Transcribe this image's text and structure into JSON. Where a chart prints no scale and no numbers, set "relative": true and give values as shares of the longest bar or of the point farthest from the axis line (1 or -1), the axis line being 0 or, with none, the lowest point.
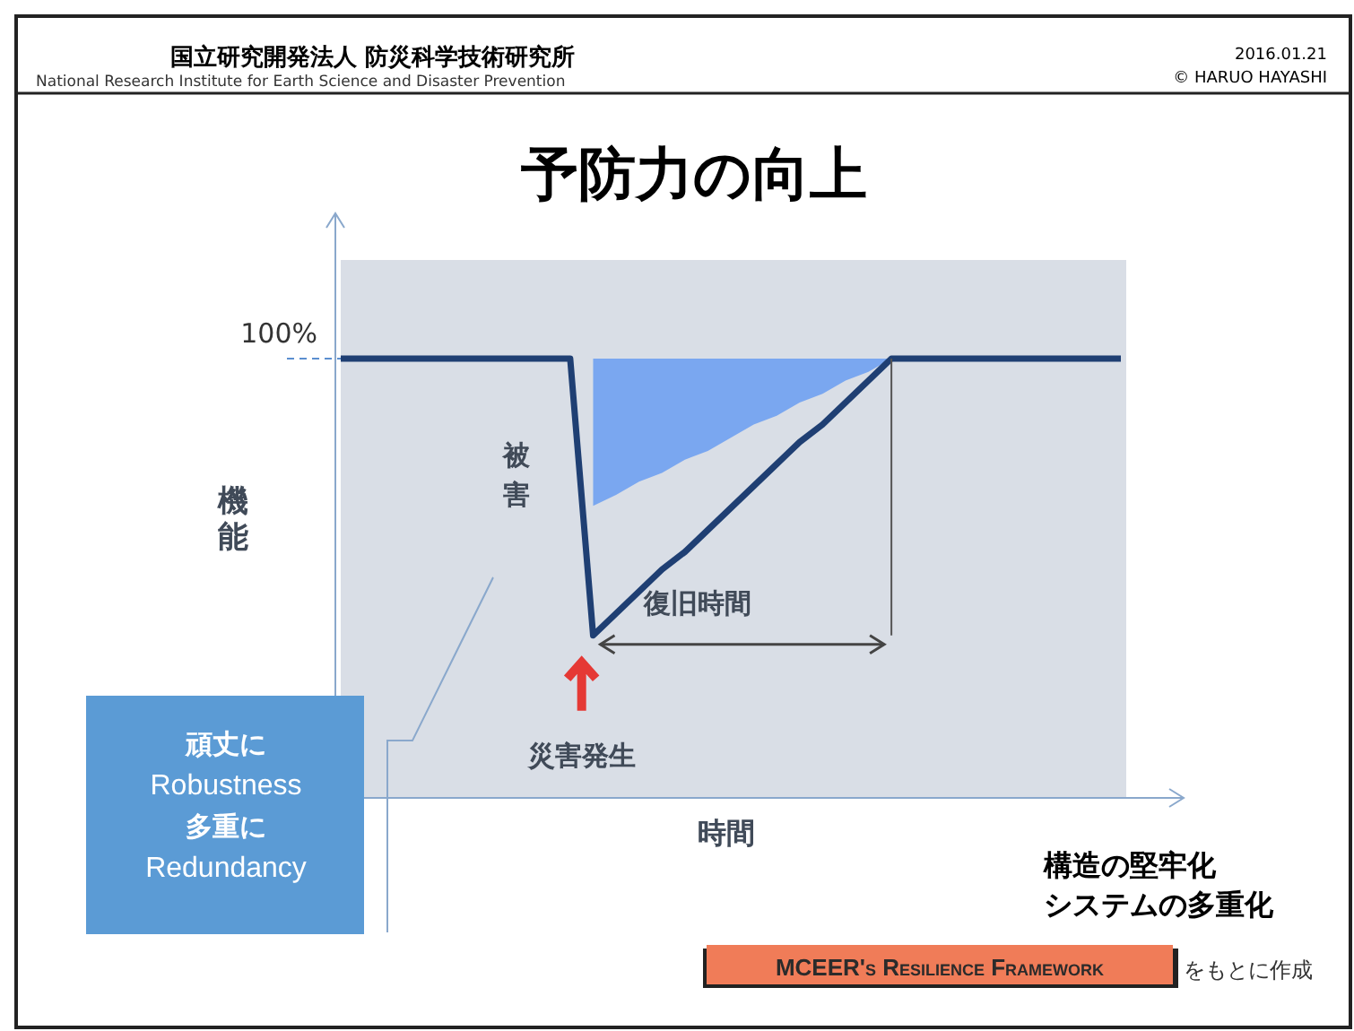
{
  "chart_data": {
    "type": "line",
    "title": "予防力の向上",
    "xlabel": "時間",
    "ylabel": "機能",
    "relative": true,
    "tick_labels": false,
    "grid": false,
    "marker": "none",
    "line_style": "solid",
    "categories": [
      null,
      null,
      null,
      null,
      null,
      null,
      null,
      null,
      null,
      null,
      null,
      null,
      null,
      null,
      null,
      null,
      null,
      null,
      null,
      null,
      null,
      null,
      null,
      null,
      null,
      null,
      null,
      null,
      null,
      null,
      null,
      null,
      null,
      null,
      null
    ],
    "series": [
      {
        "color": "#1f3f73",
        "values": [
          1,
          1,
          1,
          1,
          1,
          1,
          1,
          1,
          1,
          1,
          1,
          0.37,
          0.42,
          0.47,
          0.52,
          0.56,
          0.61,
          0.66,
          0.71,
          0.76,
          0.81,
          0.85,
          0.9,
          0.95,
          1,
          1,
          1,
          1,
          1,
          1,
          1,
          1,
          1,
          1,
          1
        ],
        "lower": [
          null,
          null,
          null,
          null,
          null,
          null,
          null,
          null,
          null,
          null,
          null,
          0.665,
          0.69,
          0.72,
          0.74,
          0.77,
          0.79,
          0.82,
          0.85,
          0.87,
          0.9,
          0.92,
          0.95,
          0.97,
          1,
          null,
          null,
          null,
          null,
          null,
          null,
          null,
          null,
          null,
          null
        ],
        "upper": [
          null,
          null,
          null,
          null,
          null,
          null,
          null,
          null,
          null,
          null,
          null,
          1,
          1,
          1,
          1,
          1,
          1,
          1,
          1,
          1,
          1,
          1,
          1,
          1,
          1,
          null,
          null,
          null,
          null,
          null,
          null,
          null,
          null,
          null,
          null
        ]
      }
    ],
    "ref_lines": [
      {
        "axis": "y",
        "value": 1,
        "label": "100%",
        "line_style": "dashed",
        "color": "#5b8fd0"
      }
    ],
    "annotations": [
      "国立研究開発法人 防災科学技術研究所",
      "National Research Institute for Earth Science and Disaster Prevention",
      "2016.01.21",
      "© HARUO HAYASHI",
      "被害",
      "復旧時間",
      "災害発生",
      "頑丈に",
      "Robustness",
      "多重に",
      "Redundancy",
      "構造の堅牢化",
      "システムの多重化",
      "MCEER's Resilience Framework",
      "をもとに作成"
    ]
  }
}
